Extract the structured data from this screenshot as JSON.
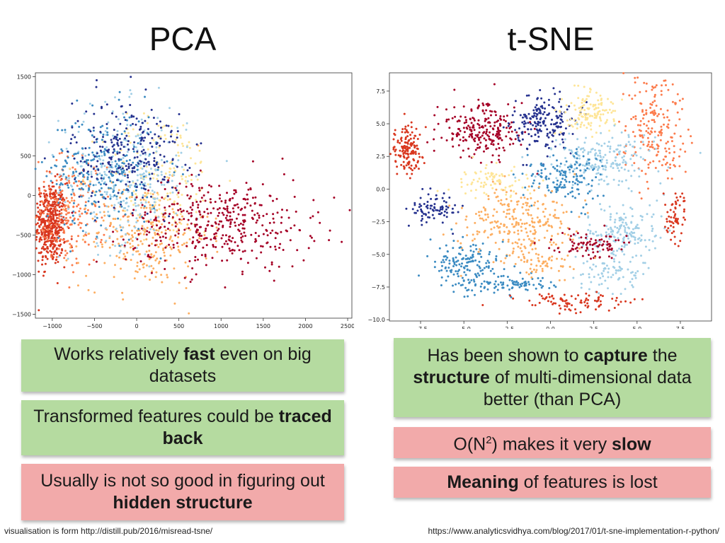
{
  "titles": {
    "left": "PCA",
    "right": "t-SNE"
  },
  "chart_data": [
    {
      "type": "scatter",
      "title": "PCA",
      "xlim": [
        -1200,
        2550
      ],
      "ylim": [
        -1550,
        1550
      ],
      "x_ticks": [
        -1000,
        -500,
        0,
        500,
        1000,
        1500,
        2000,
        2500
      ],
      "x_tick_labels": [
        "−1000",
        "−500",
        "0",
        "500",
        "1000",
        "1500",
        "2000",
        "2500"
      ],
      "y_ticks": [
        1500,
        1000,
        500,
        0,
        -500,
        -1000,
        -1500
      ],
      "y_tick_labels": [
        "1500",
        "1000",
        "500",
        "0",
        "−500",
        "−1000",
        "−1500"
      ],
      "palette": [
        "#3b8bc2",
        "#26328f",
        "#a2cfe6",
        "#fee597",
        "#fdae61",
        "#fc7c4d",
        "#d9371f",
        "#a50026"
      ],
      "clusters": [
        {
          "color": "#d9371f",
          "n": 460,
          "cx": -1020,
          "cy": -360,
          "sx": 90,
          "sy": 260
        },
        {
          "color": "#fc7c4d",
          "n": 220,
          "cx": -800,
          "cy": -200,
          "sx": 220,
          "sy": 350
        },
        {
          "color": "#fdae61",
          "n": 280,
          "cx": 100,
          "cy": -500,
          "sx": 380,
          "sy": 330
        },
        {
          "color": "#fee597",
          "n": 160,
          "cx": 300,
          "cy": 250,
          "sx": 350,
          "sy": 380
        },
        {
          "color": "#a2cfe6",
          "n": 300,
          "cx": -150,
          "cy": 250,
          "sx": 380,
          "sy": 430
        },
        {
          "color": "#3b8bc2",
          "n": 260,
          "cx": -400,
          "cy": 300,
          "sx": 330,
          "sy": 380
        },
        {
          "color": "#26328f",
          "n": 250,
          "cx": -100,
          "cy": 550,
          "sx": 330,
          "sy": 330
        },
        {
          "color": "#a50026",
          "n": 420,
          "cx": 1000,
          "cy": -350,
          "sx": 550,
          "sy": 280
        }
      ]
    },
    {
      "type": "scatter",
      "title": "t-SNE",
      "xlim": [
        -9.3,
        9.3
      ],
      "ylim": [
        -10.1,
        8.9
      ],
      "x_ticks": [
        -7.5,
        -5.0,
        -2.5,
        0.0,
        2.5,
        5.0,
        7.5
      ],
      "x_tick_labels": [
        "−7.5",
        "−5.0",
        "−2.5",
        "0.0",
        "2.5",
        "5.0",
        "7.5"
      ],
      "y_ticks": [
        7.5,
        5.0,
        2.5,
        0.0,
        -2.5,
        -5.0,
        -7.5,
        -10.0
      ],
      "y_tick_labels": [
        "7.5",
        "5.0",
        "2.5",
        "0.0",
        "−2.5",
        "−5.0",
        "−7.5",
        "−10.0"
      ],
      "palette": [
        "#3b8bc2",
        "#26328f",
        "#a2cfe6",
        "#fee597",
        "#fdae61",
        "#fc7c4d",
        "#d9371f",
        "#a50026"
      ],
      "clusters": [
        {
          "color": "#d9371f",
          "n": 150,
          "cx": -8.3,
          "cy": 3.0,
          "sx": 0.5,
          "sy": 0.9
        },
        {
          "color": "#a50026",
          "n": 230,
          "cx": -4.0,
          "cy": 4.5,
          "sx": 1.2,
          "sy": 1.0
        },
        {
          "color": "#26328f",
          "n": 190,
          "cx": -0.3,
          "cy": 5.0,
          "sx": 0.9,
          "sy": 1.1
        },
        {
          "color": "#fee597",
          "n": 130,
          "cx": 2.3,
          "cy": 6.0,
          "sx": 0.8,
          "sy": 0.8
        },
        {
          "color": "#fc7c4d",
          "n": 200,
          "cx": 6.0,
          "cy": 4.5,
          "sx": 0.9,
          "sy": 2.2
        },
        {
          "color": "#a2cfe6",
          "n": 200,
          "cx": 3.0,
          "cy": 2.3,
          "sx": 1.5,
          "sy": 1.0
        },
        {
          "color": "#3b8bc2",
          "n": 150,
          "cx": 0.8,
          "cy": 1.0,
          "sx": 1.0,
          "sy": 0.9
        },
        {
          "color": "#fdae61",
          "n": 260,
          "cx": -2.0,
          "cy": -2.5,
          "sx": 1.6,
          "sy": 1.4
        },
        {
          "color": "#26328f",
          "n": 80,
          "cx": -6.8,
          "cy": -1.5,
          "sx": 0.7,
          "sy": 0.7
        },
        {
          "color": "#3b8bc2",
          "n": 140,
          "cx": -5.0,
          "cy": -5.5,
          "sx": 1.0,
          "sy": 0.8
        },
        {
          "color": "#3b8bc2",
          "n": 100,
          "cx": -2.5,
          "cy": -7.3,
          "sx": 1.5,
          "sy": 0.35
        },
        {
          "color": "#a2cfe6",
          "n": 160,
          "cx": 4.2,
          "cy": -3.2,
          "sx": 1.1,
          "sy": 1.0
        },
        {
          "color": "#a2cfe6",
          "n": 90,
          "cx": 3.5,
          "cy": -6.5,
          "sx": 1.0,
          "sy": 0.8
        },
        {
          "color": "#a50026",
          "n": 90,
          "cx": 2.2,
          "cy": -4.3,
          "sx": 1.0,
          "sy": 0.5
        },
        {
          "color": "#d9371f",
          "n": 90,
          "cx": 1.5,
          "cy": -8.6,
          "sx": 1.6,
          "sy": 0.35
        },
        {
          "color": "#d9371f",
          "n": 60,
          "cx": 7.2,
          "cy": -2.0,
          "sx": 0.3,
          "sy": 1.0
        },
        {
          "color": "#fee597",
          "n": 80,
          "cx": -3.5,
          "cy": 0.5,
          "sx": 1.2,
          "sy": 0.6
        },
        {
          "color": "#fdae61",
          "n": 60,
          "cx": -0.5,
          "cy": -5.8,
          "sx": 1.0,
          "sy": 0.5
        }
      ]
    }
  ],
  "pros_cons": {
    "pca": [
      {
        "kind": "pro",
        "segments": [
          {
            "t": "Works relatively ",
            "b": false
          },
          {
            "t": "fast",
            "b": true
          },
          {
            "t": " even on big datasets",
            "b": false
          }
        ]
      },
      {
        "kind": "pro",
        "segments": [
          {
            "t": "Transformed features could be ",
            "b": false
          },
          {
            "t": "traced back",
            "b": true
          }
        ]
      },
      {
        "kind": "con",
        "segments": [
          {
            "t": "Usually is not so good in figuring out ",
            "b": false
          },
          {
            "t": "hidden structure",
            "b": true
          }
        ]
      }
    ],
    "tsne": [
      {
        "kind": "pro",
        "segments": [
          {
            "t": "Has been shown to ",
            "b": false
          },
          {
            "t": "capture",
            "b": true
          },
          {
            "t": " the ",
            "b": false
          },
          {
            "t": "structure",
            "b": true
          },
          {
            "t": " of multi-dimensional data better (than PCA)",
            "b": false
          }
        ]
      },
      {
        "kind": "con",
        "segments": [
          {
            "t": "O(N",
            "b": false
          },
          {
            "t": "2",
            "b": false,
            "sup": true
          },
          {
            "t": ") makes it very ",
            "b": false
          },
          {
            "t": "slow",
            "b": true
          }
        ]
      },
      {
        "kind": "con",
        "segments": [
          {
            "t": "Meaning",
            "b": true
          },
          {
            "t": " of features is lost",
            "b": false
          }
        ]
      }
    ]
  },
  "footer": {
    "left": "visualisation is form http://distill.pub/2016/misread-tsne/",
    "right": "https://www.analyticsvidhya.com/blog/2017/01/t-sne-implementation-r-python/"
  }
}
